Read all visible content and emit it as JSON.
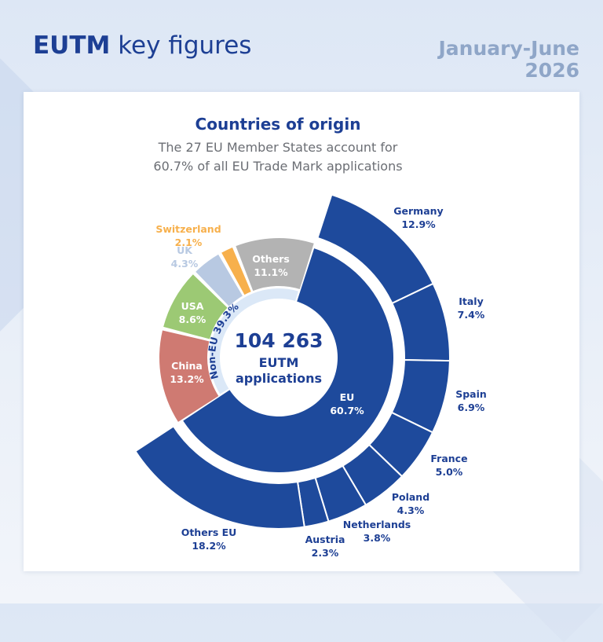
{
  "header": {
    "title_bold": "EUTM",
    "title_rest": "key figures",
    "period_line1": "January-June",
    "period_line2": "2026"
  },
  "card": {
    "title": "Countries of origin",
    "subtitle_line1": "The 27 EU Member States account for",
    "subtitle_line2": "60.7% of all EU Trade Mark applications"
  },
  "center": {
    "total": "104 263",
    "line1": "EUTM",
    "line2": "applications"
  },
  "colors": {
    "eu": "#1e4a9c",
    "non_eu_band": "#dbe8f7",
    "china": "#cf7a72",
    "usa": "#9cc974",
    "uk": "#b8c9e2",
    "switzerland": "#f7b04c",
    "others": "#b3b3b3",
    "label_blue": "#1d3f94",
    "label_white": "#ffffff"
  },
  "chart_data": {
    "type": "pie",
    "title": "Countries of origin",
    "total_applications": 104263,
    "inner_ring": [
      {
        "name": "EU",
        "value": 60.7
      },
      {
        "name": "Non-EU",
        "value": 39.3
      }
    ],
    "non_eu_breakdown": [
      {
        "name": "China",
        "value": 13.2
      },
      {
        "name": "USA",
        "value": 8.6
      },
      {
        "name": "UK",
        "value": 4.3
      },
      {
        "name": "Switzerland",
        "value": 2.1
      },
      {
        "name": "Others",
        "value": 11.1
      }
    ],
    "eu_breakdown": [
      {
        "name": "Germany",
        "value": 12.9
      },
      {
        "name": "Italy",
        "value": 7.4
      },
      {
        "name": "Spain",
        "value": 6.9
      },
      {
        "name": "France",
        "value": 5.0
      },
      {
        "name": "Poland",
        "value": 4.3
      },
      {
        "name": "Netherlands",
        "value": 3.8
      },
      {
        "name": "Austria",
        "value": 2.3
      },
      {
        "name": "Others EU",
        "value": 18.2
      }
    ],
    "labels": {
      "eu": [
        "EU",
        "60.7%"
      ],
      "non_eu": "Non-EU 39.3%",
      "china": [
        "China",
        "13.2%"
      ],
      "usa": [
        "USA",
        "8.6%"
      ],
      "uk": [
        "UK",
        "4.3%"
      ],
      "switzerland": [
        "Switzerland",
        "2.1%"
      ],
      "others": [
        "Others",
        "11.1%"
      ],
      "germany": [
        "Germany",
        "12.9%"
      ],
      "italy": [
        "Italy",
        "7.4%"
      ],
      "spain": [
        "Spain",
        "6.9%"
      ],
      "france": [
        "France",
        "5.0%"
      ],
      "poland": [
        "Poland",
        "4.3%"
      ],
      "netherlands": [
        "Netherlands",
        "3.8%"
      ],
      "austria": [
        "Austria",
        "2.3%"
      ],
      "others_eu": [
        "Others EU",
        "18.2%"
      ]
    }
  }
}
